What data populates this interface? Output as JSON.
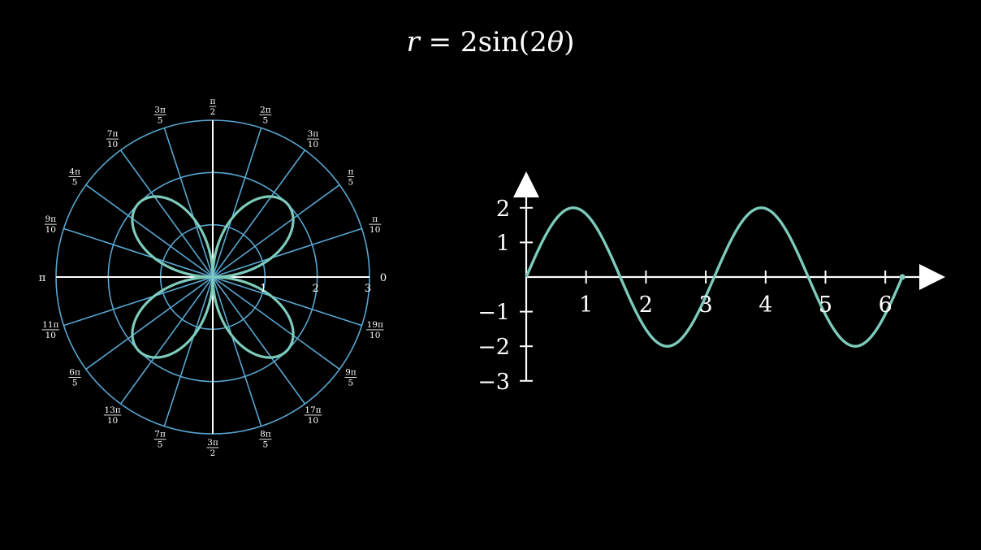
{
  "title": {
    "r": "r",
    "equals": "=",
    "coef": "2",
    "fn": "sin",
    "open": "(",
    "arg_coef": "2",
    "theta": "θ",
    "close": ")"
  },
  "colors": {
    "background": "#000000",
    "grid": "#58a6d0",
    "axis": "#ffffff",
    "curve": "#7dcbbb",
    "text": "#ffffff"
  },
  "chart_data": [
    {
      "type": "line",
      "coordinate_system": "polar",
      "function": "r = 2 sin(2θ)",
      "theta_range": [
        0,
        6.2832
      ],
      "r_max": 3,
      "radial_ticks": [
        "1",
        "2",
        "3"
      ],
      "angle_divisions": 20,
      "angle_labels": [
        {
          "num": "",
          "den": "",
          "flat": "0"
        },
        {
          "num": "π",
          "den": "10",
          "flat": ""
        },
        {
          "num": "π",
          "den": "5",
          "flat": ""
        },
        {
          "num": "3π",
          "den": "10",
          "flat": ""
        },
        {
          "num": "2π",
          "den": "5",
          "flat": ""
        },
        {
          "num": "π",
          "den": "2",
          "flat": ""
        },
        {
          "num": "3π",
          "den": "5",
          "flat": ""
        },
        {
          "num": "7π",
          "den": "10",
          "flat": ""
        },
        {
          "num": "4π",
          "den": "5",
          "flat": ""
        },
        {
          "num": "9π",
          "den": "10",
          "flat": ""
        },
        {
          "num": "",
          "den": "",
          "flat": "π"
        },
        {
          "num": "11π",
          "den": "10",
          "flat": ""
        },
        {
          "num": "6π",
          "den": "5",
          "flat": ""
        },
        {
          "num": "13π",
          "den": "10",
          "flat": ""
        },
        {
          "num": "7π",
          "den": "5",
          "flat": ""
        },
        {
          "num": "3π",
          "den": "2",
          "flat": ""
        },
        {
          "num": "8π",
          "den": "5",
          "flat": ""
        },
        {
          "num": "17π",
          "den": "10",
          "flat": ""
        },
        {
          "num": "9π",
          "den": "5",
          "flat": ""
        },
        {
          "num": "19π",
          "den": "10",
          "flat": ""
        }
      ],
      "grid": true
    },
    {
      "type": "line",
      "coordinate_system": "cartesian",
      "function": "y = 2 sin(2x)",
      "x_range": [
        0,
        6.2832
      ],
      "xlim": [
        0,
        7
      ],
      "ylim": [
        -3,
        3
      ],
      "x_ticks": [
        "1",
        "2",
        "3",
        "4",
        "5",
        "6"
      ],
      "y_ticks": [
        "2",
        "1",
        "−1",
        "−2",
        "−3"
      ],
      "grid": false,
      "end_dot": true
    }
  ]
}
